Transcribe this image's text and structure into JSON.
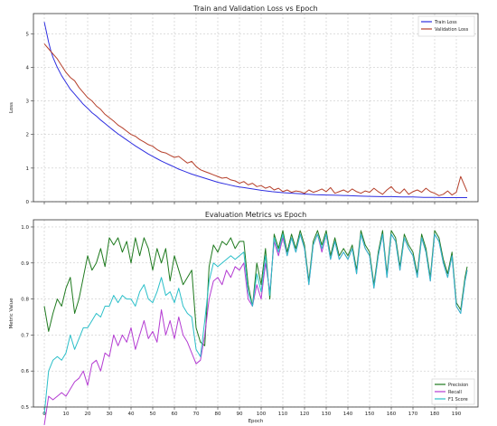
{
  "chart_data": [
    {
      "type": "line",
      "title": "Train and Validation Loss vs Epoch",
      "xlabel": "",
      "ylabel": "Loss",
      "xlim": [
        -5,
        200
      ],
      "ylim": [
        0,
        5.6
      ],
      "yticks": [
        0,
        1,
        2,
        3,
        4,
        5
      ],
      "xticks": [
        0,
        10,
        20,
        30,
        40,
        50,
        60,
        70,
        80,
        90,
        100,
        110,
        120,
        130,
        140,
        150,
        160,
        170,
        180,
        190
      ],
      "show_xtick_labels": false,
      "grid": true,
      "legend_position": "top-right",
      "series": [
        {
          "name": "Train Loss",
          "color": "#2f2fe0",
          "x": [
            0,
            1,
            2,
            3,
            4,
            5,
            6,
            8,
            10,
            12,
            14,
            16,
            18,
            20,
            22,
            24,
            26,
            28,
            30,
            32,
            34,
            36,
            38,
            40,
            42,
            44,
            46,
            48,
            50,
            52,
            54,
            56,
            58,
            60,
            62,
            64,
            66,
            68,
            70,
            72,
            74,
            76,
            78,
            80,
            82,
            84,
            86,
            88,
            90,
            92,
            94,
            96,
            98,
            100,
            105,
            110,
            115,
            120,
            125,
            130,
            135,
            140,
            145,
            150,
            155,
            160,
            165,
            170,
            175,
            180,
            185,
            190,
            195
          ],
          "y": [
            5.35,
            5.05,
            4.75,
            4.5,
            4.3,
            4.15,
            4.0,
            3.75,
            3.55,
            3.35,
            3.2,
            3.05,
            2.9,
            2.78,
            2.65,
            2.55,
            2.43,
            2.33,
            2.22,
            2.12,
            2.02,
            1.93,
            1.84,
            1.75,
            1.66,
            1.58,
            1.5,
            1.42,
            1.35,
            1.28,
            1.21,
            1.15,
            1.09,
            1.03,
            0.97,
            0.92,
            0.87,
            0.82,
            0.78,
            0.74,
            0.7,
            0.66,
            0.62,
            0.58,
            0.55,
            0.52,
            0.49,
            0.46,
            0.44,
            0.42,
            0.4,
            0.38,
            0.36,
            0.34,
            0.3,
            0.27,
            0.25,
            0.23,
            0.21,
            0.2,
            0.19,
            0.18,
            0.17,
            0.16,
            0.15,
            0.15,
            0.14,
            0.14,
            0.13,
            0.13,
            0.12,
            0.12,
            0.12
          ]
        },
        {
          "name": "Validation Loss",
          "color": "#b5402b",
          "x": [
            0,
            2,
            4,
            6,
            8,
            10,
            12,
            14,
            16,
            18,
            20,
            22,
            24,
            26,
            28,
            30,
            32,
            34,
            36,
            38,
            40,
            42,
            44,
            46,
            48,
            50,
            52,
            54,
            56,
            58,
            60,
            62,
            64,
            66,
            68,
            70,
            72,
            74,
            76,
            78,
            80,
            82,
            84,
            86,
            88,
            90,
            92,
            94,
            96,
            98,
            100,
            102,
            104,
            106,
            108,
            110,
            112,
            114,
            116,
            118,
            120,
            122,
            124,
            126,
            128,
            130,
            132,
            134,
            136,
            138,
            140,
            142,
            144,
            146,
            148,
            150,
            152,
            154,
            156,
            158,
            160,
            162,
            164,
            166,
            168,
            170,
            172,
            174,
            176,
            178,
            180,
            182,
            184,
            186,
            188,
            190,
            192,
            194,
            195
          ],
          "y": [
            4.7,
            4.55,
            4.4,
            4.25,
            4.05,
            3.85,
            3.7,
            3.6,
            3.4,
            3.25,
            3.1,
            3.0,
            2.85,
            2.75,
            2.6,
            2.5,
            2.4,
            2.28,
            2.2,
            2.1,
            2.0,
            1.95,
            1.85,
            1.78,
            1.7,
            1.65,
            1.55,
            1.48,
            1.45,
            1.38,
            1.32,
            1.35,
            1.25,
            1.15,
            1.2,
            1.05,
            0.95,
            0.9,
            0.85,
            0.8,
            0.75,
            0.7,
            0.72,
            0.65,
            0.62,
            0.55,
            0.6,
            0.5,
            0.55,
            0.45,
            0.48,
            0.4,
            0.45,
            0.35,
            0.4,
            0.3,
            0.35,
            0.28,
            0.32,
            0.3,
            0.25,
            0.35,
            0.28,
            0.32,
            0.38,
            0.3,
            0.42,
            0.25,
            0.3,
            0.35,
            0.28,
            0.38,
            0.3,
            0.25,
            0.32,
            0.28,
            0.4,
            0.3,
            0.22,
            0.35,
            0.45,
            0.3,
            0.25,
            0.38,
            0.22,
            0.3,
            0.35,
            0.28,
            0.4,
            0.3,
            0.25,
            0.18,
            0.22,
            0.32,
            0.2,
            0.28,
            0.75,
            0.45,
            0.3
          ]
        }
      ]
    },
    {
      "type": "line",
      "title": "Evaluation Metrics vs Epoch",
      "xlabel": "Epoch",
      "ylabel": "Metric Value",
      "xlim": [
        -5,
        200
      ],
      "ylim": [
        0.5,
        1.02
      ],
      "yticks": [
        0.5,
        0.6,
        0.7,
        0.8,
        0.9,
        1.0
      ],
      "xticks": [
        0,
        10,
        20,
        30,
        40,
        50,
        60,
        70,
        80,
        90,
        100,
        110,
        120,
        130,
        140,
        150,
        160,
        170,
        180,
        190
      ],
      "grid": true,
      "legend_position": "bottom-right",
      "series": [
        {
          "name": "Precision",
          "color": "#1f7a1f",
          "x": [
            0,
            2,
            4,
            6,
            8,
            10,
            12,
            14,
            16,
            18,
            20,
            22,
            24,
            26,
            28,
            30,
            32,
            34,
            36,
            38,
            40,
            42,
            44,
            46,
            48,
            50,
            52,
            54,
            56,
            58,
            60,
            62,
            64,
            66,
            68,
            70,
            72,
            74,
            76,
            78,
            80,
            82,
            84,
            86,
            88,
            90,
            92,
            94,
            96,
            98,
            100,
            102,
            104,
            106,
            108,
            110,
            112,
            114,
            116,
            118,
            120,
            122,
            124,
            126,
            128,
            130,
            132,
            134,
            136,
            138,
            140,
            142,
            144,
            146,
            148,
            150,
            152,
            154,
            156,
            158,
            160,
            162,
            164,
            166,
            168,
            170,
            172,
            174,
            176,
            178,
            180,
            182,
            184,
            186,
            188,
            190,
            192,
            194,
            195
          ],
          "y": [
            0.78,
            0.71,
            0.76,
            0.8,
            0.78,
            0.83,
            0.86,
            0.76,
            0.8,
            0.86,
            0.92,
            0.88,
            0.9,
            0.94,
            0.89,
            0.97,
            0.95,
            0.97,
            0.93,
            0.96,
            0.9,
            0.97,
            0.92,
            0.97,
            0.94,
            0.88,
            0.94,
            0.9,
            0.94,
            0.85,
            0.92,
            0.88,
            0.84,
            0.86,
            0.88,
            0.72,
            0.68,
            0.67,
            0.89,
            0.95,
            0.93,
            0.96,
            0.95,
            0.97,
            0.94,
            0.96,
            0.96,
            0.84,
            0.78,
            0.9,
            0.84,
            0.94,
            0.8,
            0.98,
            0.94,
            0.99,
            0.93,
            0.98,
            0.94,
            0.99,
            0.95,
            0.85,
            0.96,
            0.99,
            0.95,
            0.99,
            0.92,
            0.97,
            0.92,
            0.94,
            0.92,
            0.95,
            0.88,
            0.99,
            0.95,
            0.93,
            0.84,
            0.93,
            0.99,
            0.87,
            0.99,
            0.97,
            0.89,
            0.98,
            0.95,
            0.93,
            0.87,
            0.98,
            0.94,
            0.86,
            0.99,
            0.97,
            0.91,
            0.87,
            0.93,
            0.79,
            0.77,
            0.86,
            0.89
          ]
        },
        {
          "name": "Recall",
          "color": "#b43cd2",
          "x": [
            0,
            2,
            4,
            6,
            8,
            10,
            12,
            14,
            16,
            18,
            20,
            22,
            24,
            26,
            28,
            30,
            32,
            34,
            36,
            38,
            40,
            42,
            44,
            46,
            48,
            50,
            52,
            54,
            56,
            58,
            60,
            62,
            64,
            66,
            68,
            70,
            72,
            74,
            76,
            78,
            80,
            82,
            84,
            86,
            88,
            90,
            92,
            94,
            96,
            98,
            100,
            102,
            104,
            106,
            108,
            110,
            112,
            114,
            116,
            118,
            120,
            122,
            124,
            126,
            128,
            130,
            132,
            134,
            136,
            138,
            140,
            142,
            144,
            146,
            148,
            150,
            152,
            154,
            156,
            158,
            160,
            162,
            164,
            166,
            168,
            170,
            172,
            174,
            176,
            178,
            180,
            182,
            184,
            186,
            188,
            190,
            192,
            194,
            195
          ],
          "y": [
            0.45,
            0.53,
            0.52,
            0.53,
            0.54,
            0.53,
            0.55,
            0.57,
            0.58,
            0.6,
            0.56,
            0.62,
            0.63,
            0.6,
            0.65,
            0.64,
            0.7,
            0.67,
            0.7,
            0.68,
            0.72,
            0.66,
            0.7,
            0.74,
            0.69,
            0.71,
            0.68,
            0.77,
            0.7,
            0.74,
            0.69,
            0.75,
            0.7,
            0.68,
            0.65,
            0.62,
            0.63,
            0.7,
            0.8,
            0.85,
            0.86,
            0.84,
            0.88,
            0.86,
            0.89,
            0.88,
            0.9,
            0.8,
            0.78,
            0.84,
            0.8,
            0.9,
            0.82,
            0.96,
            0.92,
            0.97,
            0.92,
            0.97,
            0.93,
            0.98,
            0.94,
            0.84,
            0.95,
            0.98,
            0.93,
            0.98,
            0.91,
            0.96,
            0.91,
            0.93,
            0.91,
            0.94,
            0.87,
            0.98,
            0.94,
            0.92,
            0.83,
            0.92,
            0.98,
            0.86,
            0.98,
            0.96,
            0.88,
            0.97,
            0.94,
            0.92,
            0.86,
            0.97,
            0.93,
            0.85,
            0.98,
            0.96,
            0.9,
            0.86,
            0.92,
            0.78,
            0.76,
            0.85,
            0.88
          ]
        },
        {
          "name": "F1 Score",
          "color": "#2bbfc9",
          "x": [
            0,
            2,
            4,
            6,
            8,
            10,
            12,
            14,
            16,
            18,
            20,
            22,
            24,
            26,
            28,
            30,
            32,
            34,
            36,
            38,
            40,
            42,
            44,
            46,
            48,
            50,
            52,
            54,
            56,
            58,
            60,
            62,
            64,
            66,
            68,
            70,
            72,
            74,
            76,
            78,
            80,
            82,
            84,
            86,
            88,
            90,
            92,
            94,
            96,
            98,
            100,
            102,
            104,
            106,
            108,
            110,
            112,
            114,
            116,
            118,
            120,
            122,
            124,
            126,
            128,
            130,
            132,
            134,
            136,
            138,
            140,
            142,
            144,
            146,
            148,
            150,
            152,
            154,
            156,
            158,
            160,
            162,
            164,
            166,
            168,
            170,
            172,
            174,
            176,
            178,
            180,
            182,
            184,
            186,
            188,
            190,
            192,
            194,
            195
          ],
          "y": [
            0.48,
            0.6,
            0.63,
            0.64,
            0.63,
            0.65,
            0.7,
            0.66,
            0.69,
            0.72,
            0.72,
            0.74,
            0.76,
            0.75,
            0.78,
            0.78,
            0.81,
            0.79,
            0.81,
            0.8,
            0.8,
            0.78,
            0.82,
            0.84,
            0.8,
            0.79,
            0.82,
            0.86,
            0.81,
            0.82,
            0.79,
            0.83,
            0.78,
            0.76,
            0.75,
            0.66,
            0.64,
            0.74,
            0.85,
            0.9,
            0.89,
            0.9,
            0.91,
            0.92,
            0.91,
            0.92,
            0.93,
            0.82,
            0.78,
            0.87,
            0.82,
            0.92,
            0.81,
            0.97,
            0.93,
            0.98,
            0.92,
            0.97,
            0.93,
            0.98,
            0.94,
            0.84,
            0.95,
            0.98,
            0.94,
            0.98,
            0.91,
            0.96,
            0.91,
            0.93,
            0.91,
            0.94,
            0.87,
            0.98,
            0.94,
            0.92,
            0.83,
            0.92,
            0.98,
            0.86,
            0.98,
            0.96,
            0.88,
            0.97,
            0.94,
            0.92,
            0.86,
            0.97,
            0.93,
            0.85,
            0.98,
            0.96,
            0.9,
            0.86,
            0.92,
            0.78,
            0.76,
            0.85,
            0.88
          ]
        }
      ]
    }
  ]
}
